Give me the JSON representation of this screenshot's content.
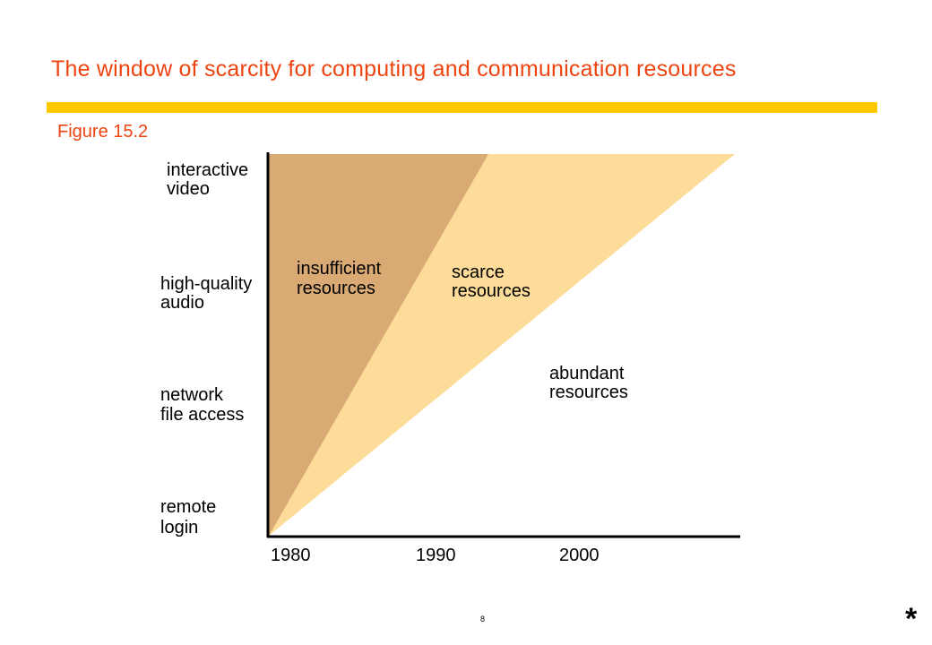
{
  "slide": {
    "title": "The window of scarcity for computing and communication resources",
    "figure_label": "Figure 15.2",
    "page_number": "8",
    "corner_mark": "*"
  },
  "diagram": {
    "y_axis_labels": [
      {
        "line1": "interactive",
        "line2": "video"
      },
      {
        "line1": "high-quality",
        "line2": "audio"
      },
      {
        "line1": "network",
        "line2": "file access"
      },
      {
        "line1": "remote",
        "line2": "login"
      }
    ],
    "x_axis_labels": [
      "1980",
      "1990",
      "2000"
    ],
    "regions": {
      "insufficient": {
        "line1": "insufficient",
        "line2": "resources"
      },
      "scarce": {
        "line1": "scarce",
        "line2": "resources"
      },
      "abundant": {
        "line1": "abundant",
        "line2": "resources"
      }
    }
  },
  "colors": {
    "title": "#ee4411",
    "title_bar": "#fdc800",
    "insufficient_region": "#d9aa73",
    "scarce_region": "#fddc99",
    "axis": "#000000"
  }
}
